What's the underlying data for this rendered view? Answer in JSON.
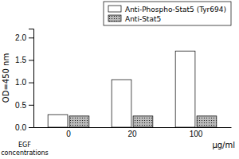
{
  "chart_data": {
    "type": "bar",
    "categories": [
      "0",
      "20",
      "100"
    ],
    "series": [
      {
        "name": "Anti-Phospho-Stat5 (Tyr694)",
        "color": "white",
        "values": [
          0.28,
          1.06,
          1.7
        ]
      },
      {
        "name": "Anti-Stat5",
        "color": "#bbbbbb",
        "values": [
          0.25,
          0.25,
          0.25
        ]
      }
    ],
    "ylabel": "OD=450 nm",
    "xlabel": "μg/ml",
    "annotations": [
      "EGF",
      "concentrations"
    ],
    "ylim": [
      0,
      2.2
    ],
    "yticks": [
      {
        "value": 0,
        "label": "0.0"
      },
      0.5,
      {
        "value": 1,
        "label": "1.0"
      },
      1.5,
      {
        "value": 2,
        "label": "2.0"
      }
    ],
    "legend": "top",
    "grid": false
  }
}
